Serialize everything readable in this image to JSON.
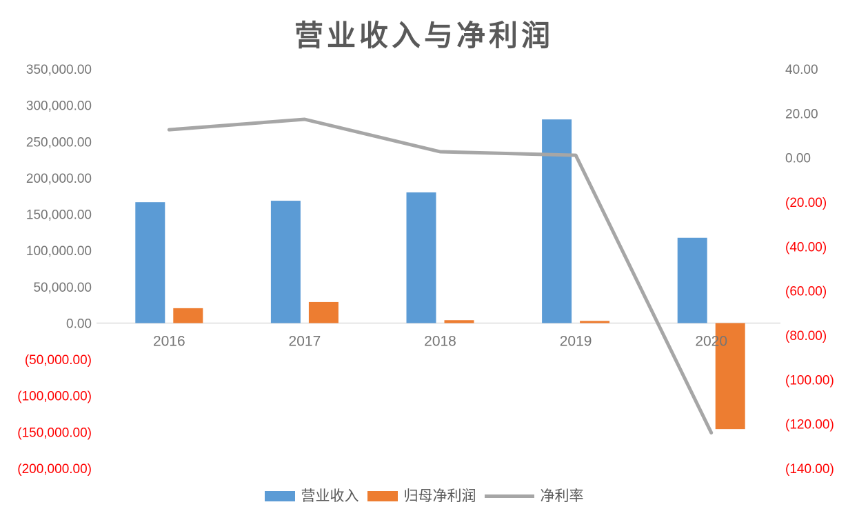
{
  "chart_data": {
    "type": "combo bar+line",
    "title": "营业收入与净利润",
    "categories": [
      "2016",
      "2017",
      "2018",
      "2019",
      "2020"
    ],
    "series": [
      {
        "name": "营业收入",
        "chart": "bar",
        "axis": "left",
        "color": "#5B9BD5",
        "values": [
          166500,
          168500,
          180000,
          280500,
          117500
        ]
      },
      {
        "name": "归母净利润",
        "chart": "bar",
        "axis": "left",
        "color": "#ED7D31",
        "values": [
          20500,
          29000,
          4000,
          3000,
          -146000
        ]
      },
      {
        "name": "净利率",
        "chart": "line",
        "axis": "right",
        "color": "#A6A6A6",
        "values": [
          12.6,
          17.3,
          2.7,
          1.1,
          -124.0
        ]
      }
    ],
    "left_axis": {
      "max": 350000,
      "min": -200000,
      "step": 50000,
      "tick_labels": [
        "350,000.00",
        "300,000.00",
        "250,000.00",
        "200,000.00",
        "150,000.00",
        "100,000.00",
        "50,000.00",
        "0.00",
        "(50,000.00)",
        "(100,000.00)",
        "(150,000.00)",
        "(200,000.00)"
      ]
    },
    "right_axis": {
      "max": 40,
      "min": -140,
      "step": 20,
      "tick_labels": [
        "40.00",
        "20.00",
        "0.00",
        "(20.00)",
        "(40.00)",
        "(60.00)",
        "(80.00)",
        "(100.00)",
        "(120.00)",
        "(140.00)"
      ]
    },
    "grid": false,
    "legend_position": "bottom",
    "colors": {
      "title_text": "#595959",
      "axis_label": "#757575",
      "negative_label": "#FF0000",
      "category_label": "#757575",
      "axis_line": "#DCDCDC",
      "legend_text": "#595959",
      "background": "#FFFFFF"
    }
  }
}
